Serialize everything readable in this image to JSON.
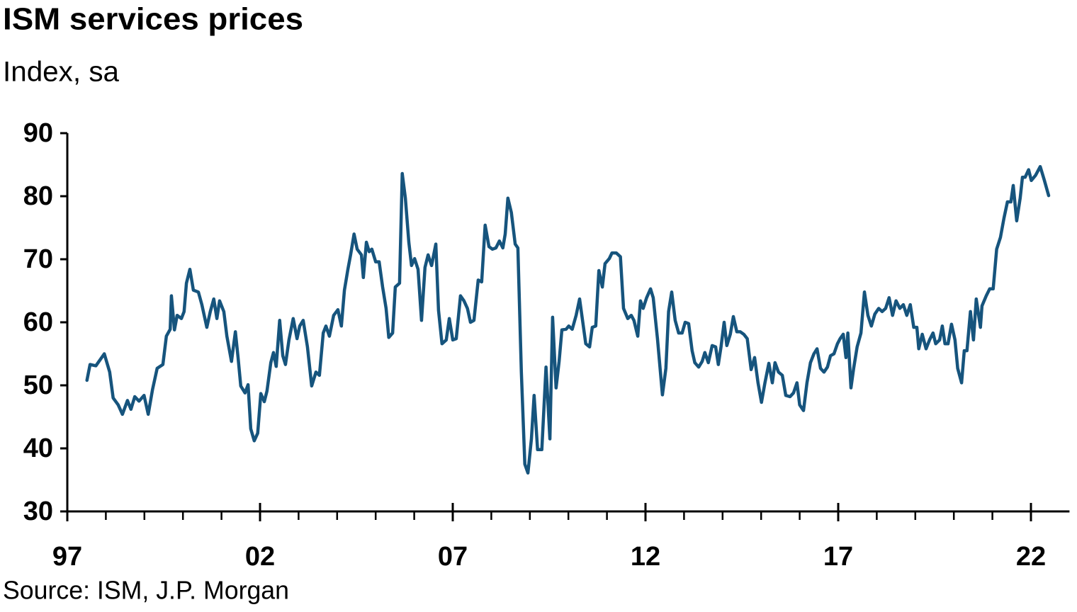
{
  "chart_data": {
    "type": "line",
    "title": "ISM services prices",
    "subtitle": "Index, sa",
    "source": "Source: ISM, J.P. Morgan",
    "xlim": [
      1997,
      2023
    ],
    "ylim": [
      30,
      90
    ],
    "xticks": [
      {
        "value": 1997,
        "label": "97"
      },
      {
        "value": 2002,
        "label": "02"
      },
      {
        "value": 2007,
        "label": "07"
      },
      {
        "value": 2012,
        "label": "12"
      },
      {
        "value": 2017,
        "label": "17"
      },
      {
        "value": 2022,
        "label": "22"
      }
    ],
    "xminorticks": [
      1998,
      1999,
      2000,
      2001,
      2003,
      2004,
      2005,
      2006,
      2008,
      2009,
      2010,
      2011,
      2013,
      2014,
      2015,
      2016,
      2018,
      2019,
      2020,
      2021
    ],
    "yticks": [
      30,
      40,
      50,
      60,
      70,
      80,
      90
    ],
    "series": [
      {
        "color": "#16547d",
        "x": [
          1997.51,
          1997.59,
          1997.74,
          1997.96,
          1998.1,
          1998.19,
          1998.32,
          1998.43,
          1998.56,
          1998.65,
          1998.75,
          1998.86,
          1998.99,
          1999.1,
          1999.21,
          1999.33,
          1999.48,
          1999.57,
          1999.67,
          1999.7,
          1999.78,
          1999.85,
          1999.96,
          2000.03,
          2000.09,
          2000.18,
          2000.27,
          2000.4,
          2000.49,
          2000.62,
          2000.71,
          2000.8,
          2000.88,
          2000.95,
          2001.06,
          2001.14,
          2001.26,
          2001.36,
          2001.43,
          2001.5,
          2001.61,
          2001.69,
          2001.76,
          2001.85,
          2001.94,
          2002.02,
          2002.11,
          2002.18,
          2002.28,
          2002.35,
          2002.42,
          2002.51,
          2002.59,
          2002.66,
          2002.75,
          2002.86,
          2002.96,
          2003.03,
          2003.12,
          2003.23,
          2003.34,
          2003.45,
          2003.54,
          2003.64,
          2003.71,
          2003.8,
          2003.91,
          2004.02,
          2004.11,
          2004.19,
          2004.28,
          2004.35,
          2004.44,
          2004.52,
          2004.63,
          2004.68,
          2004.76,
          2004.83,
          2004.9,
          2005.0,
          2005.09,
          2005.18,
          2005.27,
          2005.34,
          2005.44,
          2005.51,
          2005.62,
          2005.69,
          2005.77,
          2005.86,
          2005.93,
          2006.01,
          2006.1,
          2006.19,
          2006.28,
          2006.36,
          2006.45,
          2006.56,
          2006.63,
          2006.72,
          2006.83,
          2006.91,
          2007.0,
          2007.09,
          2007.2,
          2007.29,
          2007.38,
          2007.46,
          2007.55,
          2007.66,
          2007.75,
          2007.84,
          2007.94,
          2008.03,
          2008.12,
          2008.21,
          2008.3,
          2008.36,
          2008.43,
          2008.52,
          2008.62,
          2008.69,
          2008.78,
          2008.87,
          2008.95,
          2009.04,
          2009.11,
          2009.2,
          2009.31,
          2009.42,
          2009.52,
          2009.59,
          2009.68,
          2009.76,
          2009.83,
          2009.94,
          2010.01,
          2010.1,
          2010.2,
          2010.29,
          2010.36,
          2010.45,
          2010.55,
          2010.62,
          2010.71,
          2010.79,
          2010.88,
          2010.95,
          2011.06,
          2011.13,
          2011.24,
          2011.35,
          2011.43,
          2011.54,
          2011.63,
          2011.7,
          2011.8,
          2011.87,
          2011.94,
          2012.03,
          2012.13,
          2012.2,
          2012.31,
          2012.44,
          2012.53,
          2012.6,
          2012.68,
          2012.77,
          2012.86,
          2012.95,
          2013.03,
          2013.12,
          2013.21,
          2013.28,
          2013.38,
          2013.47,
          2013.54,
          2013.63,
          2013.73,
          2013.82,
          2013.89,
          2013.96,
          2014.04,
          2014.11,
          2014.2,
          2014.28,
          2014.37,
          2014.46,
          2014.55,
          2014.64,
          2014.74,
          2014.83,
          2014.92,
          2015.01,
          2015.1,
          2015.2,
          2015.29,
          2015.36,
          2015.45,
          2015.55,
          2015.64,
          2015.75,
          2015.84,
          2015.93,
          2016.0,
          2016.1,
          2016.19,
          2016.28,
          2016.37,
          2016.45,
          2016.54,
          2016.63,
          2016.72,
          2016.8,
          2016.89,
          2016.98,
          2017.05,
          2017.13,
          2017.2,
          2017.25,
          2017.33,
          2017.4,
          2017.49,
          2017.59,
          2017.68,
          2017.77,
          2017.86,
          2017.95,
          2018.05,
          2018.14,
          2018.23,
          2018.32,
          2018.41,
          2018.5,
          2018.6,
          2018.69,
          2018.78,
          2018.87,
          2018.96,
          2019.04,
          2019.09,
          2019.18,
          2019.28,
          2019.37,
          2019.46,
          2019.53,
          2019.63,
          2019.7,
          2019.77,
          2019.85,
          2019.94,
          2020.03,
          2020.1,
          2020.2,
          2020.27,
          2020.34,
          2020.43,
          2020.51,
          2020.58,
          2020.69,
          2020.73,
          2020.84,
          2020.93,
          2021.02,
          2021.11,
          2021.21,
          2021.3,
          2021.39,
          2021.48,
          2021.54,
          2021.63,
          2021.72,
          2021.78,
          2021.85,
          2021.94,
          2022.01,
          2022.12,
          2022.24,
          2022.35,
          2022.46
        ],
        "values": [
          50.8,
          53.3,
          53.1,
          55.0,
          52.1,
          48.0,
          46.9,
          45.4,
          47.6,
          46.2,
          48.2,
          47.5,
          48.4,
          45.4,
          49.3,
          52.7,
          53.3,
          57.8,
          58.9,
          64.2,
          58.8,
          61.1,
          60.6,
          61.7,
          66.2,
          68.4,
          65.1,
          64.8,
          62.8,
          59.2,
          61.7,
          63.7,
          60.6,
          63.4,
          61.7,
          57.8,
          53.8,
          58.5,
          54.4,
          49.9,
          48.8,
          50.1,
          43.1,
          41.2,
          42.4,
          48.7,
          47.4,
          49.1,
          53.6,
          55.2,
          53.0,
          60.3,
          54.7,
          53.3,
          57.2,
          60.6,
          57.4,
          59.4,
          60.3,
          56.1,
          49.9,
          52.1,
          51.6,
          58.3,
          59.4,
          57.8,
          61.1,
          62.0,
          59.4,
          65.1,
          68.4,
          70.7,
          74.0,
          71.6,
          70.7,
          67.1,
          72.7,
          71.2,
          71.6,
          69.6,
          69.6,
          65.6,
          62.2,
          57.6,
          58.3,
          65.6,
          66.2,
          83.6,
          79.7,
          72.7,
          69.0,
          70.1,
          68.4,
          60.3,
          68.7,
          70.7,
          69.0,
          72.4,
          61.9,
          56.6,
          57.2,
          60.6,
          57.2,
          57.4,
          64.2,
          63.4,
          62.2,
          60.0,
          60.3,
          66.7,
          66.4,
          75.4,
          72.0,
          71.6,
          71.8,
          72.9,
          71.8,
          74.0,
          79.7,
          77.4,
          72.4,
          71.8,
          52.1,
          37.5,
          36.1,
          41.5,
          48.4,
          39.8,
          39.8,
          52.9,
          41.5,
          60.8,
          49.6,
          53.8,
          58.8,
          58.9,
          59.4,
          58.9,
          61.1,
          63.7,
          60.6,
          56.6,
          56.1,
          59.2,
          59.4,
          68.2,
          65.6,
          69.3,
          70.1,
          71.0,
          71.0,
          70.4,
          62.2,
          60.6,
          61.1,
          60.3,
          57.8,
          63.4,
          62.2,
          63.9,
          65.3,
          63.9,
          57.4,
          48.5,
          52.7,
          61.7,
          64.8,
          60.3,
          58.3,
          58.3,
          60.0,
          59.8,
          55.5,
          53.6,
          52.9,
          53.8,
          55.2,
          53.6,
          56.3,
          56.1,
          53.3,
          56.1,
          60.0,
          56.3,
          58.1,
          60.9,
          58.5,
          58.5,
          58.1,
          57.4,
          52.5,
          54.4,
          50.4,
          47.3,
          50.4,
          53.5,
          50.4,
          53.6,
          52.1,
          51.6,
          48.4,
          48.2,
          48.8,
          50.4,
          46.9,
          46.0,
          50.4,
          53.6,
          55.0,
          55.8,
          52.7,
          52.1,
          52.9,
          54.7,
          55.0,
          56.6,
          57.4,
          58.1,
          54.4,
          58.3,
          49.6,
          52.7,
          56.1,
          58.3,
          64.8,
          61.1,
          59.4,
          61.3,
          62.2,
          61.7,
          62.2,
          63.9,
          61.1,
          63.4,
          62.2,
          62.8,
          61.1,
          62.8,
          59.2,
          59.2,
          55.8,
          58.1,
          55.8,
          57.2,
          58.3,
          56.6,
          57.2,
          59.4,
          56.6,
          56.6,
          59.7,
          57.2,
          52.7,
          50.4,
          55.5,
          55.5,
          61.7,
          57.2,
          63.7,
          59.2,
          62.6,
          64.2,
          65.3,
          65.3,
          71.6,
          73.5,
          76.5,
          79.1,
          79.1,
          81.7,
          76.1,
          79.7,
          83.0,
          83.0,
          84.2,
          82.5,
          83.3,
          84.7,
          82.5,
          80.1
        ]
      }
    ]
  }
}
